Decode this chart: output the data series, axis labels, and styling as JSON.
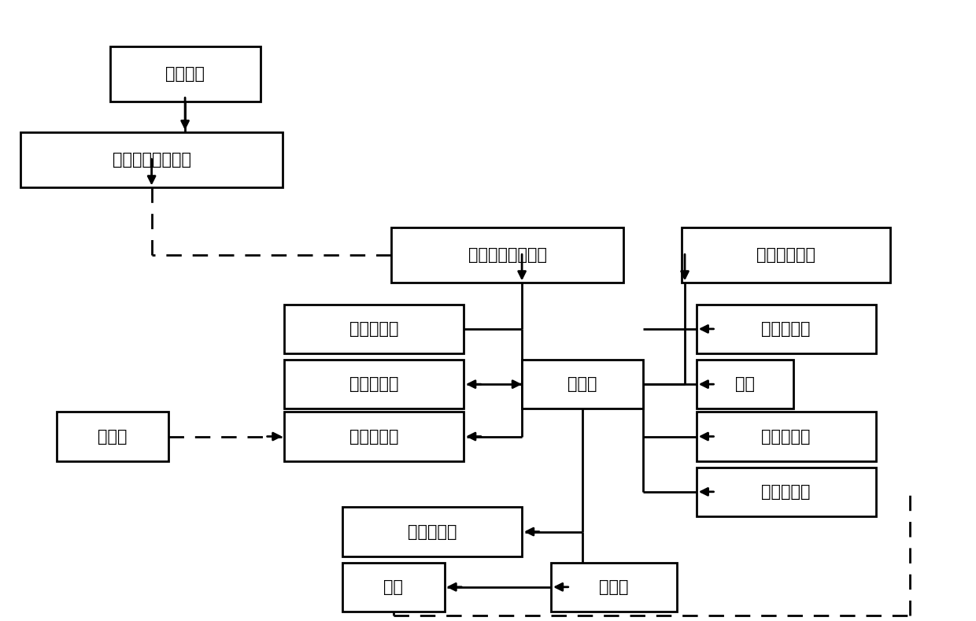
{
  "bg_color": "#ffffff",
  "lw": 2.0,
  "font_size": 15,
  "boxes": {
    "控制面板": [
      0.11,
      0.84,
      0.155,
      0.09
    ],
    "远程端信号收发器": [
      0.018,
      0.7,
      0.27,
      0.09
    ],
    "装置端信号收发器": [
      0.4,
      0.545,
      0.24,
      0.09
    ],
    "信息储存单元": [
      0.7,
      0.545,
      0.215,
      0.09
    ],
    "液位传感器": [
      0.29,
      0.43,
      0.185,
      0.08
    ],
    "时间控制器": [
      0.29,
      0.34,
      0.185,
      0.08
    ],
    "排气电磁阀": [
      0.29,
      0.255,
      0.185,
      0.08
    ],
    "排气孔": [
      0.055,
      0.255,
      0.115,
      0.08
    ],
    "控制器": [
      0.535,
      0.34,
      0.125,
      0.08
    ],
    "进水电磁阀": [
      0.715,
      0.43,
      0.185,
      0.08
    ],
    "水泵": [
      0.715,
      0.34,
      0.1,
      0.08
    ],
    "出水电磁阀": [
      0.715,
      0.255,
      0.185,
      0.08
    ],
    "气体流量计": [
      0.715,
      0.165,
      0.185,
      0.08
    ],
    "采气电磁阀": [
      0.35,
      0.1,
      0.185,
      0.08
    ],
    "气泵": [
      0.35,
      0.01,
      0.105,
      0.08
    ],
    "检测器": [
      0.565,
      0.01,
      0.13,
      0.08
    ]
  }
}
